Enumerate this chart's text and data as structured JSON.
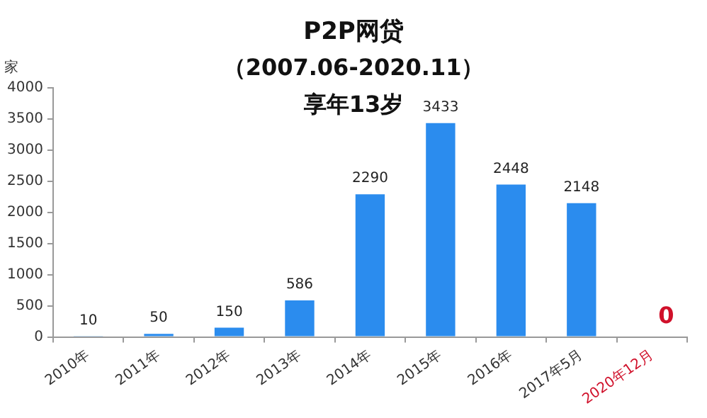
{
  "chart_data": {
    "type": "bar",
    "title": "P2P网贷",
    "subtitle": "（2007.06-2020.11）",
    "annotations": [
      "享年13岁"
    ],
    "ylabel": "家",
    "categories": [
      "2010年",
      "2011年",
      "2012年",
      "2013年",
      "2014年",
      "2015年",
      "2016年",
      "2017年5月",
      "2020年12月"
    ],
    "values": [
      10,
      50,
      150,
      586,
      2290,
      3433,
      2448,
      2148,
      0
    ],
    "colors": [
      "#2b8cee",
      "#2b8cee",
      "#2b8cee",
      "#2b8cee",
      "#2b8cee",
      "#2b8cee",
      "#2b8cee",
      "#2b8cee",
      "#d0102a"
    ],
    "ylim": [
      0,
      4000
    ],
    "yticks": [
      0,
      500,
      1000,
      1500,
      2000,
      2500,
      3000,
      3500,
      4000
    ],
    "grid": false,
    "legend": false,
    "data_labels": true
  }
}
